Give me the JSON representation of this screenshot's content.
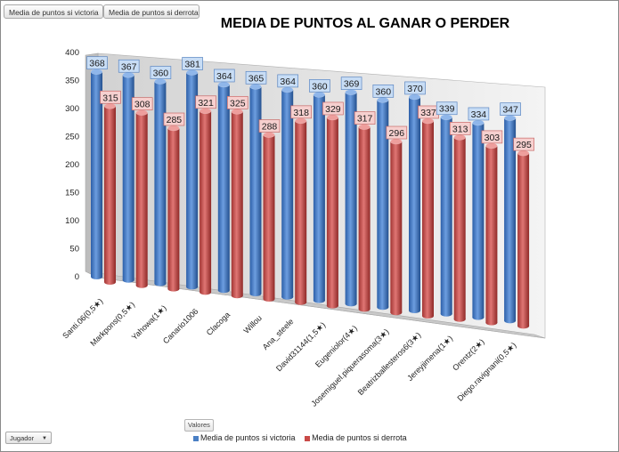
{
  "buttons": {
    "victoria": "Media de puntos si victoria",
    "derrota": "Media de puntos si derrota",
    "valores": "Valores",
    "jugador": "Jugador"
  },
  "chart_data": {
    "type": "bar",
    "title": "MEDIA DE PUNTOS  AL GANAR O PERDER",
    "categories": [
      "Santi.06(0,5★)",
      "Markpons(0,5★)",
      "Yahowa(1★)",
      "Canario1006",
      "Clacoga",
      "Willou",
      "Ana_steele",
      "David31144(1,5★)",
      "Eugeniolor(4★)",
      "Josemiguel.piquerasoma(3★)",
      "Beatrizballesteros6(3★)",
      "Jereyjimena(1★)",
      "Orentz(2★)",
      "Diego.ravignani(0,5★)"
    ],
    "series": [
      {
        "name": "Media de puntos si victoria",
        "values": [
          368,
          367,
          360,
          381,
          364,
          365,
          364,
          360,
          369,
          360,
          370,
          339,
          334,
          347
        ]
      },
      {
        "name": "Media de puntos si derrota",
        "values": [
          315,
          308,
          285,
          321,
          325,
          288,
          318,
          329,
          317,
          296,
          337,
          313,
          303,
          295
        ]
      }
    ],
    "yticks": [
      "0",
      "50",
      "100",
      "150",
      "200",
      "250",
      "300",
      "350",
      "400"
    ],
    "ylim": [
      0,
      400
    ],
    "legend": "bottom",
    "colors": {
      "victoria": "#4a7fc4",
      "derrota": "#c94a48",
      "victoria_label_bg": "#c8ddf5",
      "derrota_label_bg": "#f6d0cf"
    }
  }
}
